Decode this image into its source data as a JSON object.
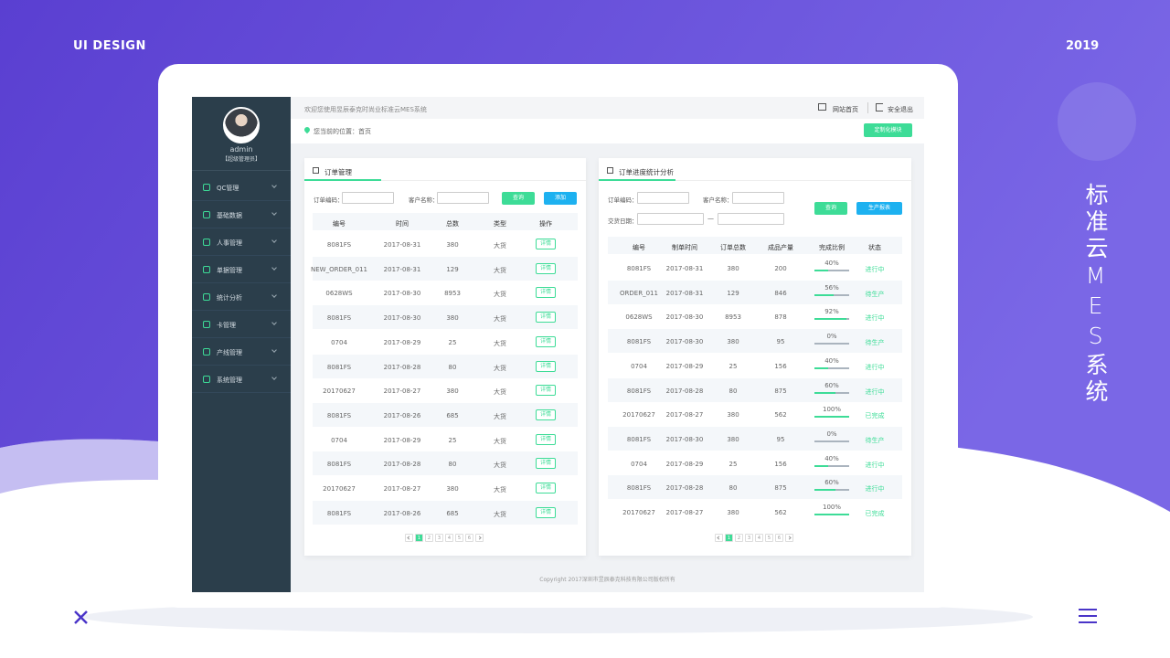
{
  "header": {
    "left": "UI DESIGN",
    "right": "2019",
    "vertical": "标准云MES系统"
  },
  "sidebar": {
    "user": "admin",
    "role": "【超级管理员】",
    "menu": [
      "QC管理",
      "基础数据",
      "人事管理",
      "单据管理",
      "统计分析",
      "卡管理",
      "产线管理",
      "系统管理"
    ]
  },
  "topbar": {
    "welcome": "欢迎您使用昱辰泰克时尚业标准云MES系统",
    "home": "网站首页",
    "logout": "安全退出"
  },
  "breadcrumb": {
    "text": "您当前的位置：首页",
    "button": "定制化模块"
  },
  "order_panel": {
    "title": "订单管理",
    "filters": [
      "订单编码：",
      "客户名称："
    ],
    "buttons": [
      "查询",
      "添加"
    ],
    "columns": [
      "编号",
      "时间",
      "总数",
      "类型",
      "操作"
    ],
    "rows": [
      [
        "8081FS",
        "2017-08-31",
        "380",
        "大货",
        "详情"
      ],
      [
        "NEW_ORDER_011",
        "2017-08-31",
        "129",
        "大货",
        "详情"
      ],
      [
        "0628WS",
        "2017-08-30",
        "8953",
        "大货",
        "详情"
      ],
      [
        "8081FS",
        "2017-08-30",
        "380",
        "大货",
        "详情"
      ],
      [
        "0704",
        "2017-08-29",
        "25",
        "大货",
        "详情"
      ],
      [
        "8081FS",
        "2017-08-28",
        "80",
        "大货",
        "详情"
      ],
      [
        "20170627",
        "2017-08-27",
        "380",
        "大货",
        "详情"
      ],
      [
        "8081FS",
        "2017-08-26",
        "685",
        "大货",
        "详情"
      ],
      [
        "0704",
        "2017-08-29",
        "25",
        "大货",
        "详情"
      ],
      [
        "8081FS",
        "2017-08-28",
        "80",
        "大货",
        "详情"
      ],
      [
        "20170627",
        "2017-08-27",
        "380",
        "大货",
        "详情"
      ],
      [
        "8081FS",
        "2017-08-26",
        "685",
        "大货",
        "详情"
      ]
    ],
    "pages": [
      "1",
      "2",
      "3",
      "4",
      "5",
      "6"
    ]
  },
  "progress_panel": {
    "title": "订单进度统计分析",
    "filters": [
      "订单编码：",
      "客户名称：",
      "交货日期："
    ],
    "date_sep": "—",
    "buttons": [
      "查询",
      "生产报表"
    ],
    "columns": [
      "编号",
      "制单时间",
      "订单总数",
      "成品产量",
      "完成比例",
      "状态"
    ],
    "rows": [
      [
        "8081FS",
        "2017-08-31",
        "380",
        "200",
        "40%",
        "进行中"
      ],
      [
        "ORDER_011",
        "2017-08-31",
        "129",
        "846",
        "56%",
        "待生产"
      ],
      [
        "0628WS",
        "2017-08-30",
        "8953",
        "878",
        "92%",
        "进行中"
      ],
      [
        "8081FS",
        "2017-08-30",
        "380",
        "95",
        "0%",
        "待生产"
      ],
      [
        "0704",
        "2017-08-29",
        "25",
        "156",
        "40%",
        "进行中"
      ],
      [
        "8081FS",
        "2017-08-28",
        "80",
        "875",
        "60%",
        "进行中"
      ],
      [
        "20170627",
        "2017-08-27",
        "380",
        "562",
        "100%",
        "已完成"
      ],
      [
        "8081FS",
        "2017-08-30",
        "380",
        "95",
        "0%",
        "待生产"
      ],
      [
        "0704",
        "2017-08-29",
        "25",
        "156",
        "40%",
        "进行中"
      ],
      [
        "8081FS",
        "2017-08-28",
        "80",
        "875",
        "60%",
        "进行中"
      ],
      [
        "20170627",
        "2017-08-27",
        "380",
        "562",
        "100%",
        "已完成"
      ]
    ],
    "pages": [
      "1",
      "2",
      "3",
      "4",
      "5",
      "6"
    ]
  },
  "footer": "Copyright 2017深圳市昱辰泰克科技有限公司版权所有"
}
